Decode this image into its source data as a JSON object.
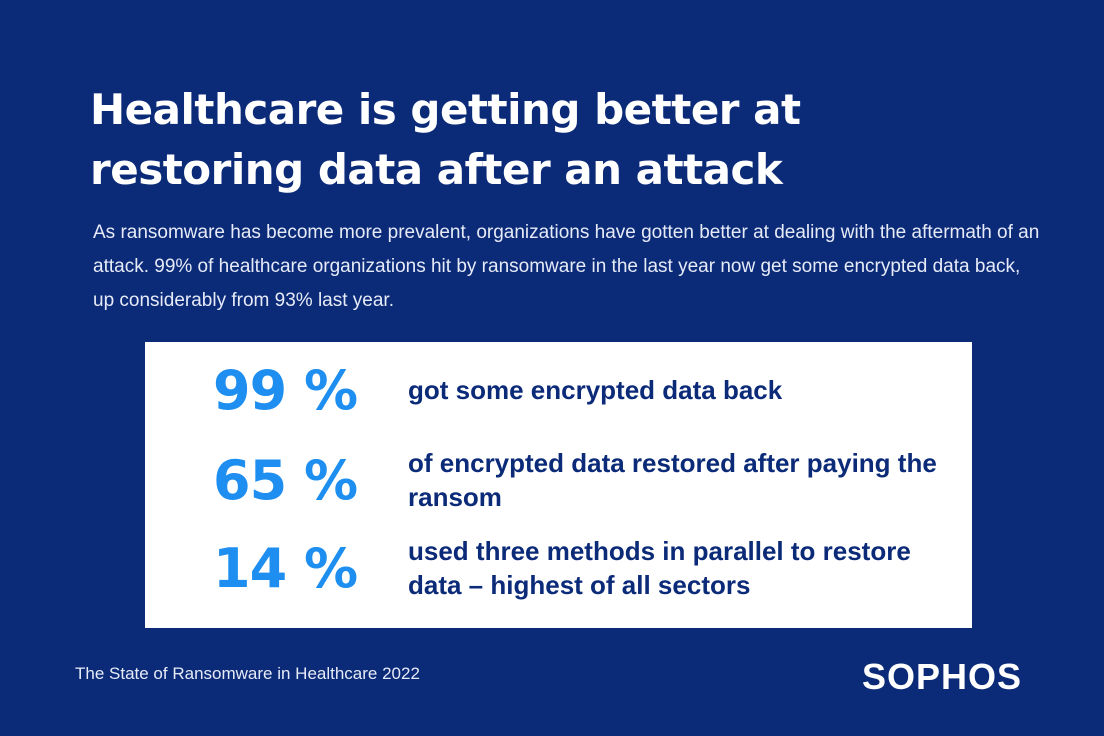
{
  "header": {
    "title": "Healthcare is getting better at restoring data after an attack",
    "subtitle": "As ransomware has become more prevalent, organizations have gotten better at dealing with the aftermath of an attack. 99% of healthcare organizations hit by ransomware in the last year now get some encrypted data back, up considerably from 93% last year."
  },
  "stats": [
    {
      "value": "99 %",
      "label": "got some encrypted data back"
    },
    {
      "value": "65 %",
      "label": "of encrypted data restored after paying the ransom"
    },
    {
      "value": "14 %",
      "label": "used three methods in parallel to restore data – highest of all sectors"
    }
  ],
  "footer": {
    "source": "The State of Ransomware in Healthcare 2022",
    "logo": "SOPHOS"
  }
}
